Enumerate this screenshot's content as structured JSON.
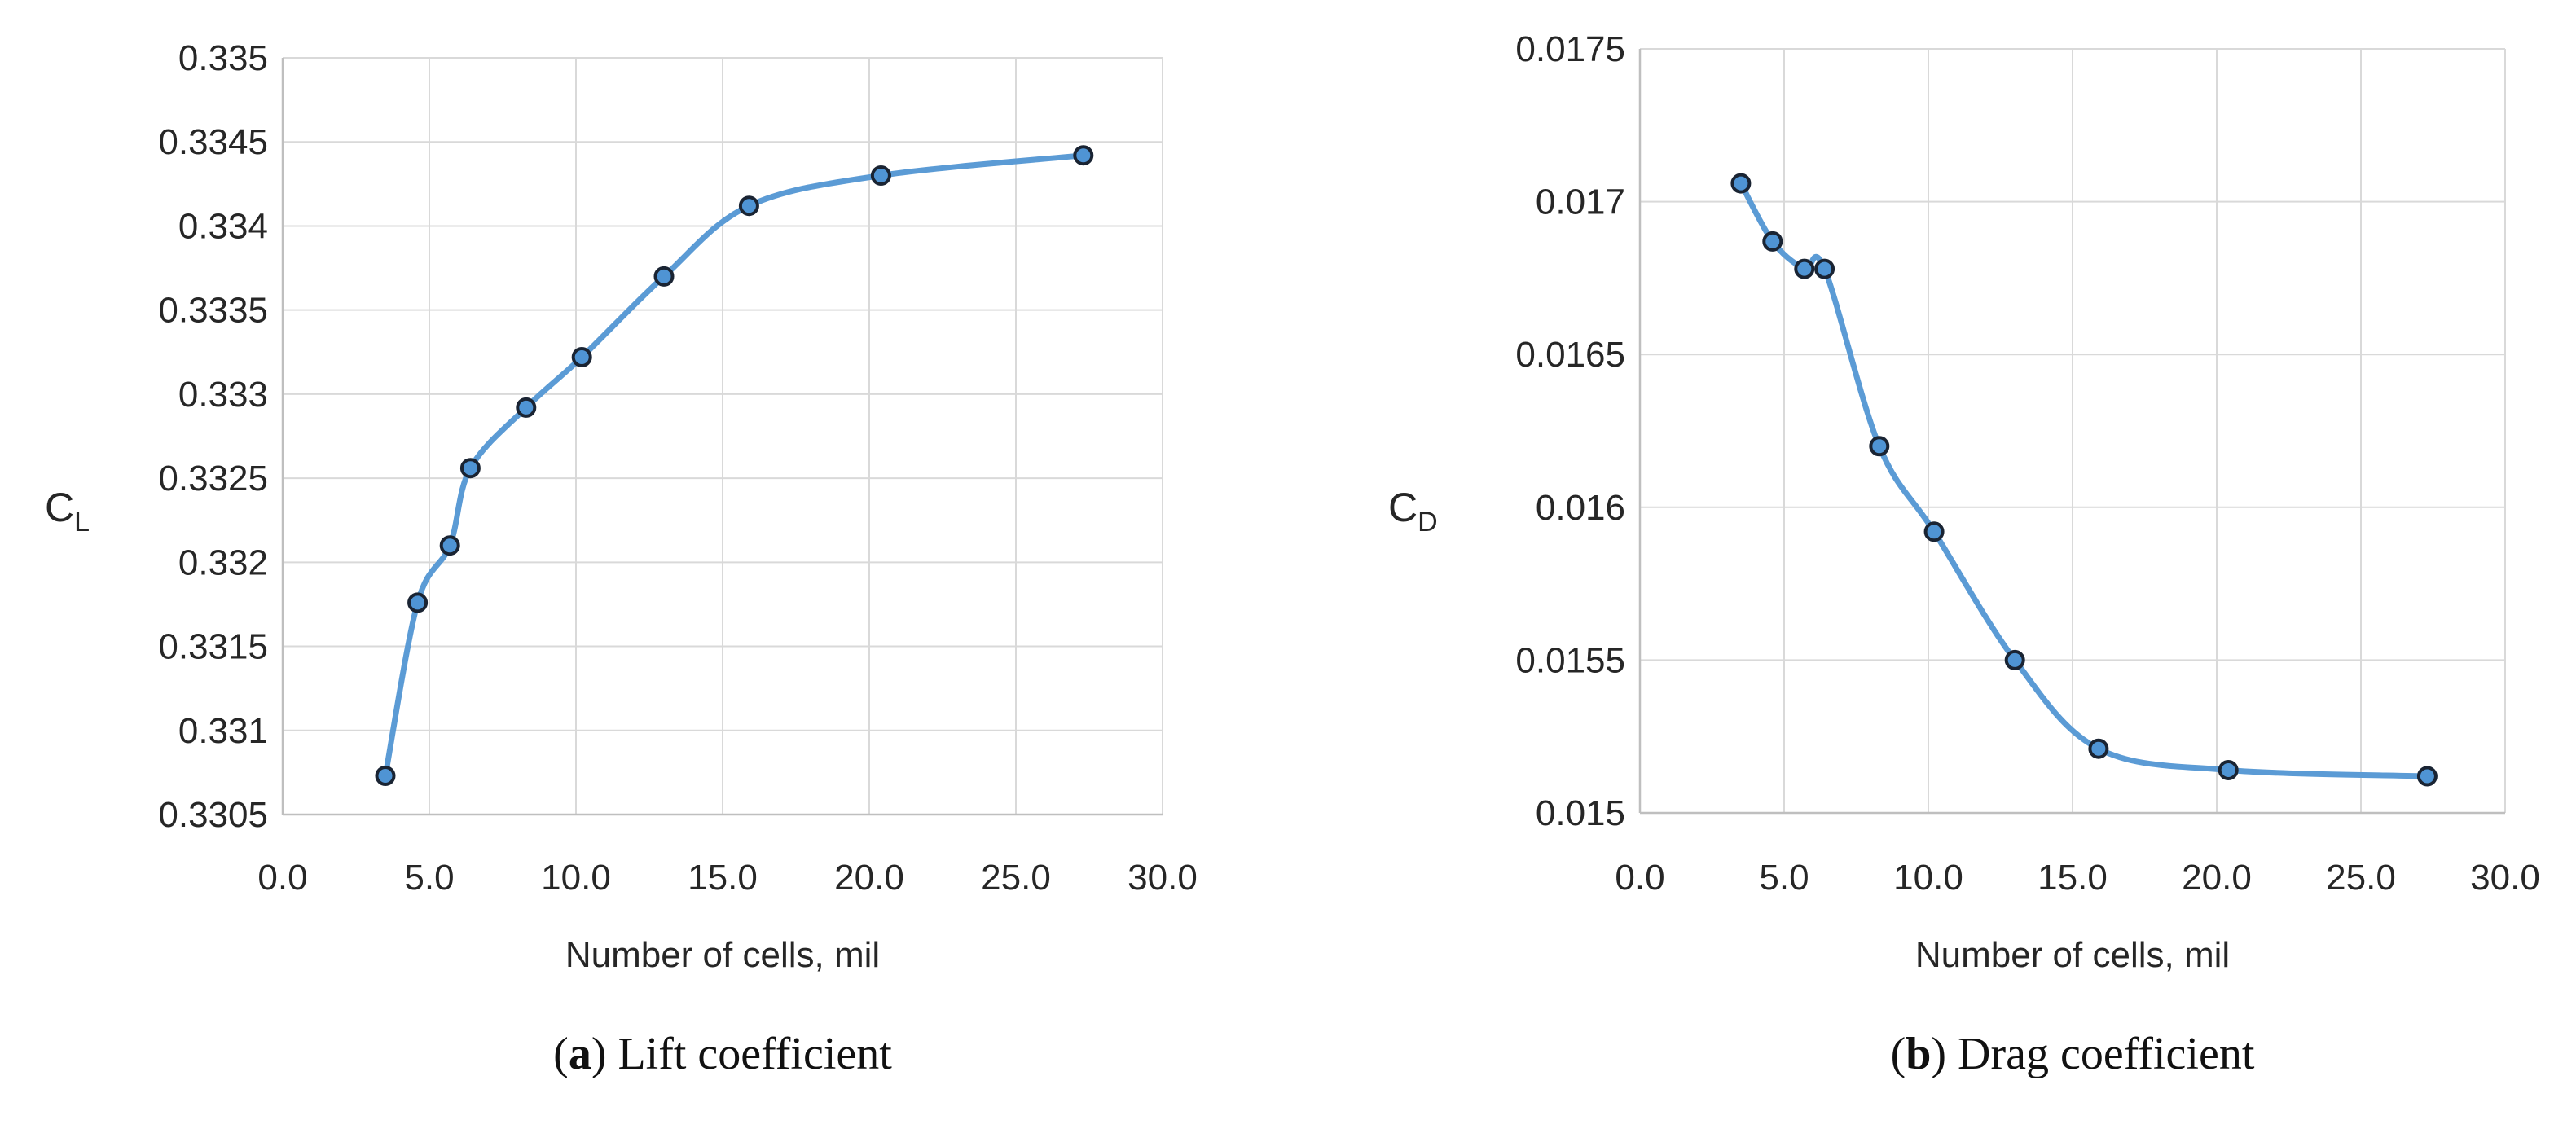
{
  "figure": {
    "background": "#ffffff",
    "captions": [
      {
        "open": "(",
        "letter": "a",
        "rest": ") Lift coefficient"
      },
      {
        "open": "(",
        "letter": "b",
        "rest": ") Drag coefficient"
      }
    ]
  },
  "chart_data": [
    {
      "type": "line",
      "title": "(a) Lift coefficient",
      "xlabel": "Number of cells, mil",
      "ylabel_main": "C",
      "ylabel_sub": "L",
      "x": [
        3.5,
        4.6,
        5.7,
        6.4,
        8.3,
        10.2,
        13.0,
        15.9,
        20.4,
        27.3
      ],
      "y": [
        0.33073,
        0.33176,
        0.3321,
        0.33256,
        0.33292,
        0.33322,
        0.3337,
        0.33412,
        0.3343,
        0.33442
      ],
      "xlim": [
        0,
        30
      ],
      "ylim": [
        0.3305,
        0.335
      ],
      "x_ticks": [
        "0.0",
        "5.0",
        "10.0",
        "15.0",
        "20.0",
        "25.0",
        "30.0"
      ],
      "y_ticks_top_to_bottom": [
        "0.335",
        "0.3345",
        "0.334",
        "0.3335",
        "0.333",
        "0.3325",
        "0.332",
        "0.3315",
        "0.331",
        "0.3305"
      ],
      "grid": true,
      "legend": "none",
      "smoothed_line": true,
      "colors": {
        "line": "#5b9bd5",
        "marker_fill": "#4f94d4",
        "marker_stroke": "#1a2433",
        "grid": "#d9d9d9",
        "axis": "#bfbfbf",
        "text": "#262626"
      }
    },
    {
      "type": "line",
      "title": "(b) Drag coefficient",
      "xlabel": "Number of cells, mil",
      "ylabel_main": "C",
      "ylabel_sub": "D",
      "x": [
        3.5,
        4.6,
        5.7,
        6.4,
        8.3,
        10.2,
        13.0,
        15.9,
        20.4,
        27.3
      ],
      "y": [
        0.01706,
        0.01687,
        0.01678,
        0.01678,
        0.0162,
        0.01592,
        0.0155,
        0.01521,
        0.01514,
        0.01512
      ],
      "xlim": [
        0,
        30
      ],
      "ylim": [
        0.015,
        0.0175
      ],
      "x_ticks": [
        "0.0",
        "5.0",
        "10.0",
        "15.0",
        "20.0",
        "25.0",
        "30.0"
      ],
      "y_ticks_top_to_bottom": [
        "0.0175",
        "0.017",
        "0.0165",
        "0.016",
        "0.0155",
        "0.015"
      ],
      "grid": true,
      "legend": "none",
      "smoothed_line": true,
      "colors": {
        "line": "#5b9bd5",
        "marker_fill": "#4f94d4",
        "marker_stroke": "#1a2433",
        "grid": "#d9d9d9",
        "axis": "#bfbfbf",
        "text": "#262626"
      }
    }
  ]
}
